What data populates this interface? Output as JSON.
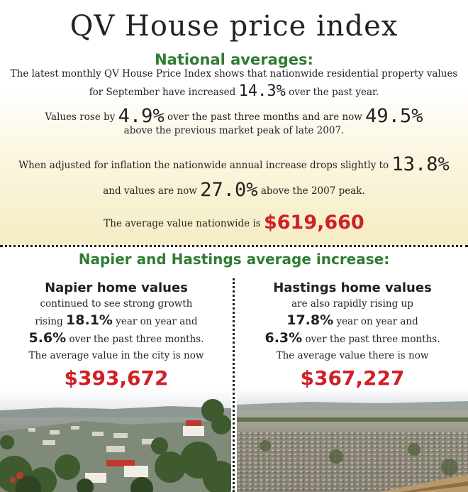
{
  "title": "QV House price index",
  "national": {
    "heading": "National averages:",
    "line1": "The latest monthly QV House Price Index shows that nationwide residential property values",
    "line2_pre": "for September have increased",
    "annual_increase": "14.3%",
    "line2_post": "over the past year.",
    "line3_pre": "Values rose by",
    "three_month_increase": "4.9%",
    "line3_mid": "over the past three months and are now",
    "above_peak": "49.5%",
    "line4": "above the previous market peak of late 2007.",
    "line5_pre": "When adjusted for inflation the nationwide annual increase drops slightly to",
    "inflation_adjusted": "13.8%",
    "line6_pre": "and values are now",
    "inflation_above_peak": "27.0%",
    "line6_post": "above the 2007 peak.",
    "line7_pre": "The average value nationwide is",
    "average_value": "$619,660"
  },
  "regional_heading": "Napier and Hastings average increase:",
  "napier": {
    "heading": "Napier home values",
    "line1": "continued to see strong growth",
    "line2_pre": "rising",
    "annual": "18.1%",
    "line2_post": "year on year and",
    "three_month": "5.6%",
    "line3_post": "over the past three months.",
    "line4": "The average value in the city is now",
    "value": "$393,672"
  },
  "hastings": {
    "heading": "Hastings home values",
    "line1": "are also rapidly rising up",
    "annual": "17.8%",
    "line2_post": "year on year and",
    "three_month": "6.3%",
    "line3_post": "over the past three months.",
    "line4": "The average value there is now",
    "value": "$367,227"
  },
  "colors": {
    "heading_green": "#2e7d32",
    "value_red": "#d11f26",
    "text": "#231f20"
  }
}
